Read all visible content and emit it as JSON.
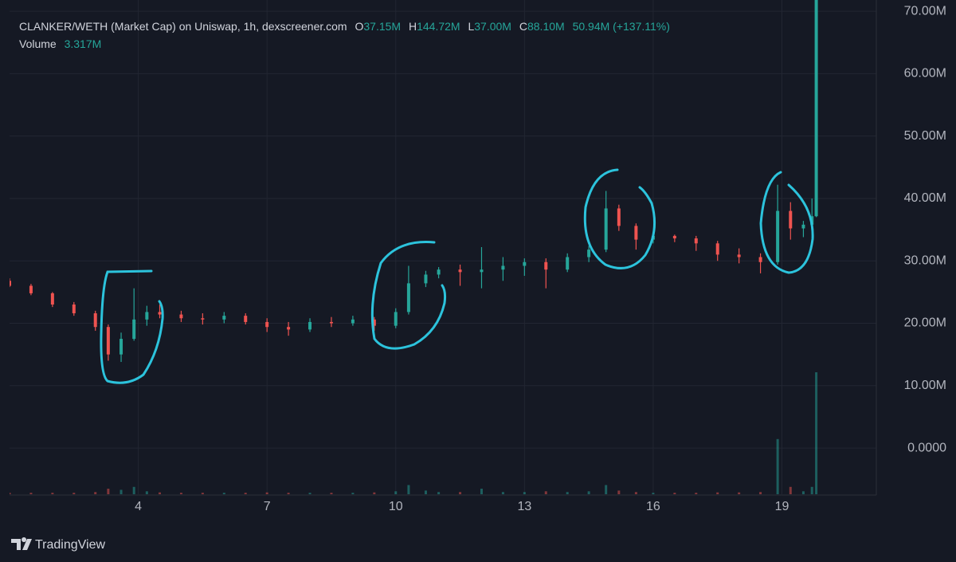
{
  "chart_data": {
    "type": "candlestick",
    "title": "CLANKER/WETH (Market Cap) on Uniswap, 1h, dexscreener.com",
    "legend": {
      "o_label": "O",
      "o": "37.15M",
      "h_label": "H",
      "h": "144.72M",
      "l_label": "L",
      "l": "37.00M",
      "c_label": "C",
      "c": "88.10M",
      "change": "50.94M (+137.11%)",
      "volume_label": "Volume",
      "volume": "3.317M"
    },
    "brand": "TradingView",
    "up_color": "#26a69a",
    "down_color": "#ef5350",
    "x": [
      1.0,
      1.5,
      2.0,
      2.5,
      3.0,
      3.3,
      3.6,
      3.9,
      4.2,
      4.5,
      5.0,
      5.5,
      6.0,
      6.5,
      7.0,
      7.5,
      8.0,
      8.5,
      9.0,
      9.5,
      10.0,
      10.3,
      10.7,
      11.0,
      11.5,
      12.0,
      12.5,
      13.0,
      13.5,
      14.0,
      14.5,
      14.9,
      15.2,
      15.6,
      16.0,
      16.5,
      17.0,
      17.5,
      18.0,
      18.5,
      18.9,
      19.2,
      19.5,
      19.7,
      19.8
    ],
    "open": [
      26800000,
      26000000,
      24800000,
      23000000,
      21600000,
      19400000,
      15000000,
      17500000,
      20600000,
      21800000,
      21400000,
      20800000,
      20600000,
      21200000,
      20200000,
      19400000,
      19000000,
      20200000,
      20000000,
      20600000,
      19600000,
      21800000,
      26400000,
      27800000,
      28600000,
      28200000,
      28600000,
      29200000,
      29800000,
      28600000,
      30600000,
      31800000,
      38400000,
      35600000,
      33400000,
      34000000,
      33600000,
      32800000,
      31000000,
      30600000,
      29800000,
      38000000,
      35200000,
      35800000,
      37150000
    ],
    "high": [
      27200000,
      26300000,
      25000000,
      23400000,
      22000000,
      19800000,
      18500000,
      25600000,
      22800000,
      23000000,
      22000000,
      21600000,
      21800000,
      21600000,
      20800000,
      20200000,
      20800000,
      21000000,
      21200000,
      21000000,
      22400000,
      29200000,
      28400000,
      29000000,
      29400000,
      32200000,
      30600000,
      30400000,
      30400000,
      31200000,
      32400000,
      41200000,
      39000000,
      36000000,
      34400000,
      34200000,
      34000000,
      33200000,
      32000000,
      31200000,
      42200000,
      39400000,
      36400000,
      40000000,
      144720000
    ],
    "low": [
      25800000,
      24500000,
      22600000,
      21200000,
      18800000,
      14000000,
      13800000,
      17200000,
      19600000,
      20800000,
      20200000,
      19800000,
      20000000,
      19800000,
      18600000,
      18000000,
      18600000,
      19400000,
      19600000,
      18800000,
      19200000,
      21400000,
      25800000,
      27200000,
      26000000,
      25600000,
      26800000,
      27600000,
      25600000,
      28200000,
      29800000,
      31400000,
      34800000,
      31800000,
      32800000,
      33000000,
      31600000,
      30000000,
      29600000,
      28000000,
      29400000,
      33400000,
      33800000,
      35400000,
      37000000
    ],
    "close": [
      26000000,
      24800000,
      23000000,
      21600000,
      19400000,
      15000000,
      17500000,
      20600000,
      21800000,
      21400000,
      20800000,
      20600000,
      21200000,
      20200000,
      19400000,
      19000000,
      20200000,
      20000000,
      20600000,
      19600000,
      21800000,
      26400000,
      27800000,
      28600000,
      28200000,
      28600000,
      29200000,
      29800000,
      28600000,
      30600000,
      31800000,
      38400000,
      35600000,
      33400000,
      34000000,
      33600000,
      32800000,
      31000000,
      30600000,
      29800000,
      38000000,
      35200000,
      35800000,
      37150000,
      88100000
    ],
    "volume": [
      40000,
      40000,
      40000,
      40000,
      60000,
      150000,
      120000,
      200000,
      80000,
      50000,
      40000,
      40000,
      40000,
      40000,
      50000,
      40000,
      40000,
      40000,
      40000,
      50000,
      80000,
      250000,
      100000,
      60000,
      60000,
      150000,
      60000,
      60000,
      80000,
      60000,
      80000,
      250000,
      100000,
      60000,
      40000,
      40000,
      40000,
      50000,
      50000,
      60000,
      1500000,
      200000,
      80000,
      200000,
      3317000
    ],
    "xlim": [
      1.0,
      21.2
    ],
    "ylim": [
      -7400000,
      71800000
    ],
    "y2lim": [
      0,
      13440000
    ],
    "xticks": [
      4,
      7,
      10,
      13,
      16,
      19
    ],
    "yticks": [
      {
        "value": 0,
        "label": "0.0000"
      },
      {
        "value": 10000000,
        "label": "10.00M"
      },
      {
        "value": 20000000,
        "label": "20.00M"
      },
      {
        "value": 30000000,
        "label": "30.00M"
      },
      {
        "value": 40000000,
        "label": "40.00M"
      },
      {
        "value": 50000000,
        "label": "50.00M"
      },
      {
        "value": 60000000,
        "label": "60.00M"
      },
      {
        "value": 70000000,
        "label": "70.00M"
      }
    ],
    "grid": true
  }
}
